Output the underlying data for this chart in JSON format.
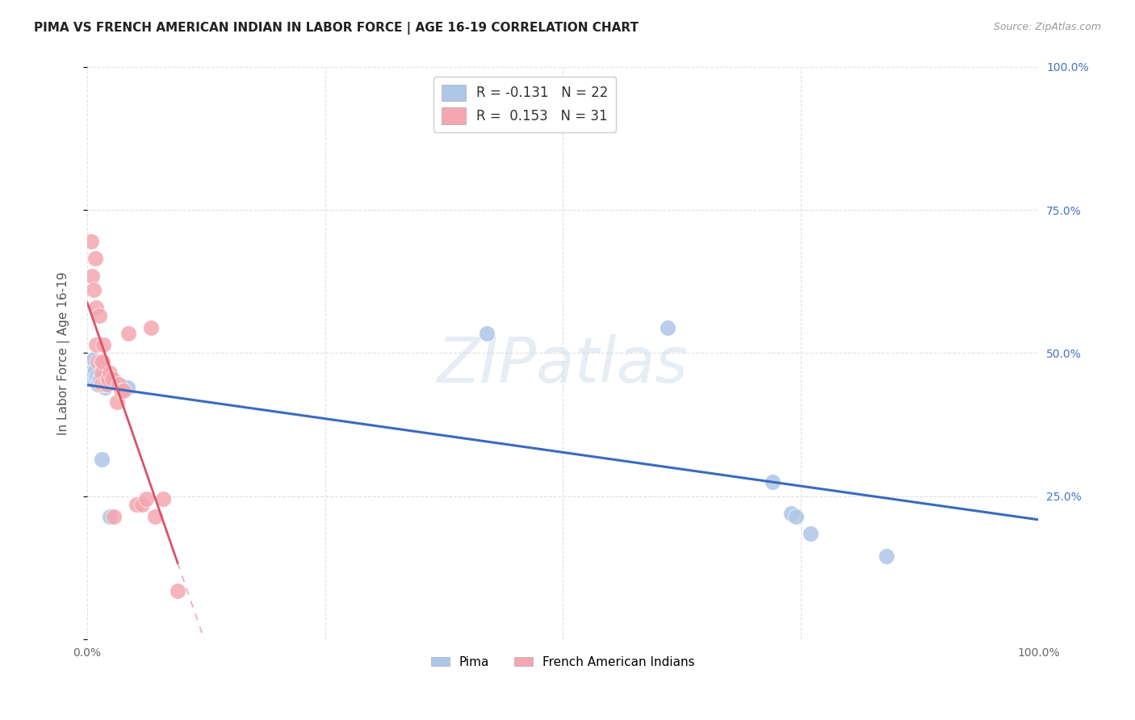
{
  "title": "PIMA VS FRENCH AMERICAN INDIAN IN LABOR FORCE | AGE 16-19 CORRELATION CHART",
  "source": "Source: ZipAtlas.com",
  "ylabel": "In Labor Force | Age 16-19",
  "xlim": [
    0.0,
    1.0
  ],
  "ylim": [
    0.0,
    1.0
  ],
  "pima_color": "#aec6e8",
  "french_color": "#f4a7b0",
  "pima_line_color": "#3a6bbf",
  "french_line_color": "#d9536a",
  "watermark": "ZIPatlas",
  "background_color": "#ffffff",
  "grid_color": "#e0e0e0",
  "pima_x": [
    0.004,
    0.006,
    0.007,
    0.008,
    0.009,
    0.01,
    0.011,
    0.013,
    0.014,
    0.015,
    0.017,
    0.019,
    0.022,
    0.024,
    0.042,
    0.42,
    0.61,
    0.72,
    0.74,
    0.745,
    0.76,
    0.84
  ],
  "pima_y": [
    0.455,
    0.47,
    0.49,
    0.47,
    0.455,
    0.46,
    0.445,
    0.455,
    0.455,
    0.315,
    0.445,
    0.44,
    0.455,
    0.215,
    0.44,
    0.535,
    0.545,
    0.275,
    0.22,
    0.215,
    0.185,
    0.145
  ],
  "french_x": [
    0.004,
    0.005,
    0.007,
    0.008,
    0.009,
    0.009,
    0.011,
    0.013,
    0.014,
    0.015,
    0.015,
    0.016,
    0.017,
    0.019,
    0.021,
    0.022,
    0.024,
    0.026,
    0.028,
    0.031,
    0.033,
    0.036,
    0.038,
    0.043,
    0.052,
    0.058,
    0.062,
    0.067,
    0.071,
    0.08,
    0.095
  ],
  "french_y": [
    0.695,
    0.635,
    0.61,
    0.665,
    0.58,
    0.515,
    0.485,
    0.565,
    0.485,
    0.465,
    0.445,
    0.485,
    0.515,
    0.445,
    0.445,
    0.455,
    0.465,
    0.455,
    0.215,
    0.415,
    0.445,
    0.435,
    0.435,
    0.535,
    0.235,
    0.235,
    0.245,
    0.545,
    0.215,
    0.245,
    0.085
  ],
  "legend_r_pima": "-0.131",
  "legend_n_pima": "22",
  "legend_r_french": "0.153",
  "legend_n_french": "31"
}
